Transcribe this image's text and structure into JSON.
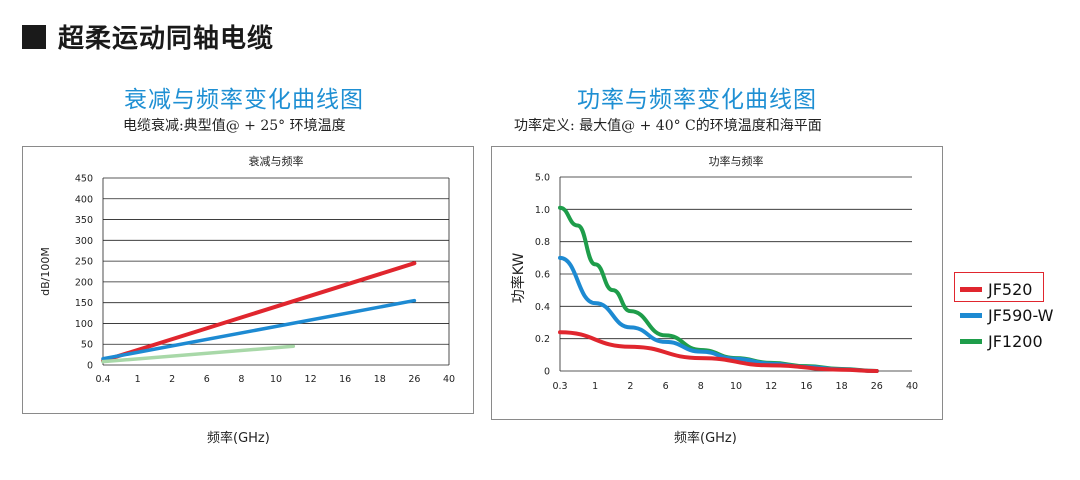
{
  "section_title": "超柔运动同轴电缆",
  "charts": [
    {
      "title": "衰减与频率变化曲线图",
      "subtitle": "电缆衰减:典型值@ + 25° 环境温度"
    },
    {
      "title": "功率与频率变化曲线图",
      "subtitle": "功率定义:  最大值@ + 40° C的环境温度和海平面"
    }
  ],
  "colors": {
    "JF520": "#e0262e",
    "JF590-W": "#1d8ad2",
    "JF1200": "#1e9d4a",
    "JF1200_light": "#a8d8a8"
  },
  "legend": [
    {
      "name": "JF520",
      "color": "#e0262e"
    },
    {
      "name": "JF590-W",
      "color": "#1d8ad2"
    },
    {
      "name": "JF1200",
      "color": "#1e9d4a"
    }
  ],
  "chart_data": [
    {
      "type": "line",
      "title": "衰减与频率",
      "xlabel": "频率(GHz)",
      "ylabel": "dB/100M",
      "x_ticks": [
        "0.4",
        "1",
        "2",
        "6",
        "8",
        "10",
        "12",
        "16",
        "18",
        "26",
        "40"
      ],
      "y_ticks": [
        0,
        50,
        100,
        150,
        200,
        250,
        300,
        350,
        400,
        450
      ],
      "ylim": [
        0,
        450
      ],
      "series": [
        {
          "name": "JF520",
          "x_index": [
            0,
            9
          ],
          "values": [
            10,
            245
          ],
          "curve": "linear"
        },
        {
          "name": "JF590-W",
          "x_index": [
            0,
            9
          ],
          "values": [
            15,
            155
          ],
          "curve": "linear"
        },
        {
          "name": "JF1200",
          "x_index": [
            0,
            5.5
          ],
          "values": [
            8,
            45
          ],
          "curve": "concave"
        }
      ]
    },
    {
      "type": "line",
      "title": "功率与频率",
      "xlabel": "频率(GHz)",
      "ylabel": "功率KW",
      "x_ticks": [
        "0.3",
        "1",
        "2",
        "6",
        "8",
        "10",
        "12",
        "16",
        "18",
        "26",
        "40"
      ],
      "y_ticks": [
        "0",
        "0.2",
        "0.4",
        "0.6",
        "0.8",
        "1.0",
        "5.0"
      ],
      "series": [
        {
          "name": "JF520",
          "points": [
            [
              0,
              0.24
            ],
            [
              2,
              0.15
            ],
            [
              4,
              0.08
            ],
            [
              6,
              0.035
            ],
            [
              8,
              0.008
            ],
            [
              9,
              0.0
            ]
          ]
        },
        {
          "name": "JF590-W",
          "points": [
            [
              0,
              0.7
            ],
            [
              1,
              0.42
            ],
            [
              2,
              0.27
            ],
            [
              3,
              0.18
            ],
            [
              4,
              0.12
            ],
            [
              5,
              0.075
            ],
            [
              6,
              0.045
            ],
            [
              7,
              0.025
            ],
            [
              8,
              0.01
            ],
            [
              9,
              0.0
            ]
          ]
        },
        {
          "name": "JF1200",
          "points": [
            [
              0,
              1.2
            ],
            [
              0.5,
              0.9
            ],
            [
              1,
              0.66
            ],
            [
              1.5,
              0.5
            ],
            [
              2,
              0.37
            ],
            [
              3,
              0.22
            ],
            [
              4,
              0.13
            ],
            [
              5,
              0.08
            ],
            [
              6,
              0.05
            ],
            [
              7,
              0.03
            ],
            [
              8,
              0.012
            ],
            [
              9,
              0.0
            ]
          ]
        }
      ]
    }
  ]
}
